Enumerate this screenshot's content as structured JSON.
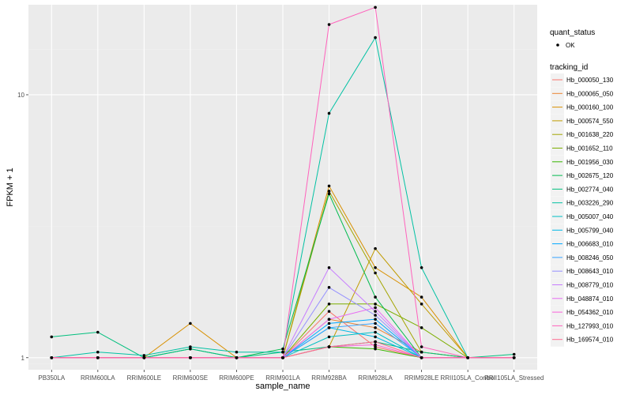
{
  "chart_data": {
    "type": "line",
    "xlabel": "sample_name",
    "ylabel": "FPKM + 1",
    "y_scale": "log10",
    "ylim": [
      0.9,
      22
    ],
    "y_ticks": [
      1,
      10
    ],
    "categories": [
      "PB350LA",
      "RRIM600LA",
      "RRIM600LE",
      "RRIM600SE",
      "RRIM600PE",
      "RRIM901LA",
      "RRIM928BA",
      "RRIM928LA",
      "RRIM928LE",
      "RRII105LA_Control",
      "RRII105LA_Stressed"
    ],
    "legend_point": {
      "title": "quant_status",
      "label": "OK"
    },
    "legend_title": "tracking_id",
    "series": [
      {
        "name": "Hb_000050_130",
        "color": "#F8766D",
        "values": [
          1.0,
          1.0,
          1.0,
          1.0,
          1.0,
          1.0,
          1.5,
          1.1,
          1.0,
          1.0,
          1.0
        ]
      },
      {
        "name": "Hb_000065_050",
        "color": "#EA8331",
        "values": [
          1.0,
          1.0,
          1.0,
          1.0,
          1.0,
          1.0,
          1.4,
          1.3,
          1.05,
          1.0,
          1.0
        ]
      },
      {
        "name": "Hb_000160_100",
        "color": "#D89000",
        "values": [
          1.0,
          1.0,
          1.0,
          1.35,
          1.0,
          1.0,
          4.5,
          2.2,
          1.7,
          1.0,
          1.0
        ]
      },
      {
        "name": "Hb_000574_550",
        "color": "#C09B00",
        "values": [
          1.0,
          1.0,
          1.0,
          1.0,
          1.0,
          1.0,
          1.1,
          2.6,
          1.6,
          1.0,
          1.0
        ]
      },
      {
        "name": "Hb_001638_220",
        "color": "#A3A500",
        "values": [
          1.0,
          1.0,
          1.0,
          1.0,
          1.0,
          1.0,
          4.3,
          2.1,
          1.05,
          1.0,
          1.0
        ]
      },
      {
        "name": "Hb_001652_110",
        "color": "#7CAE00",
        "values": [
          1.0,
          1.0,
          1.0,
          1.0,
          1.0,
          1.0,
          1.6,
          1.6,
          1.3,
          1.0,
          1.0
        ]
      },
      {
        "name": "Hb_001956_030",
        "color": "#39B600",
        "values": [
          1.0,
          1.0,
          1.0,
          1.0,
          1.0,
          1.0,
          1.1,
          1.08,
          1.0,
          1.0,
          1.0
        ]
      },
      {
        "name": "Hb_002675_120",
        "color": "#00BB4E",
        "values": [
          1.0,
          1.0,
          1.0,
          1.08,
          1.0,
          1.08,
          4.2,
          1.7,
          1.0,
          1.0,
          1.0
        ]
      },
      {
        "name": "Hb_002774_040",
        "color": "#00BF7D",
        "values": [
          1.2,
          1.25,
          1.0,
          1.08,
          1.0,
          1.05,
          1.1,
          1.15,
          1.05,
          1.0,
          1.03
        ]
      },
      {
        "name": "Hb_003226_290",
        "color": "#00C1A3",
        "values": [
          1.0,
          1.05,
          1.02,
          1.1,
          1.05,
          1.05,
          8.5,
          16.5,
          2.2,
          1.0,
          1.0
        ]
      },
      {
        "name": "Hb_005007_040",
        "color": "#00BFC4",
        "values": [
          1.0,
          1.0,
          1.0,
          1.0,
          1.0,
          1.0,
          1.2,
          1.25,
          1.0,
          1.0,
          1.0
        ]
      },
      {
        "name": "Hb_005799_040",
        "color": "#00B8E5",
        "values": [
          1.0,
          1.0,
          1.0,
          1.0,
          1.0,
          1.0,
          1.3,
          1.2,
          1.0,
          1.0,
          1.0
        ]
      },
      {
        "name": "Hb_006683_010",
        "color": "#00A9FF",
        "values": [
          1.0,
          1.0,
          1.0,
          1.0,
          1.0,
          1.0,
          1.35,
          1.4,
          1.0,
          1.0,
          1.0
        ]
      },
      {
        "name": "Hb_008246_050",
        "color": "#35A2FF",
        "values": [
          1.0,
          1.0,
          1.0,
          1.0,
          1.0,
          1.0,
          1.3,
          1.35,
          1.0,
          1.0,
          1.0
        ]
      },
      {
        "name": "Hb_008643_010",
        "color": "#9590FF",
        "values": [
          1.0,
          1.0,
          1.0,
          1.0,
          1.0,
          1.0,
          1.85,
          1.45,
          1.0,
          1.0,
          1.0
        ]
      },
      {
        "name": "Hb_008779_010",
        "color": "#C77CFF",
        "values": [
          1.0,
          1.0,
          1.0,
          1.0,
          1.0,
          1.0,
          2.2,
          1.5,
          1.0,
          1.0,
          1.0
        ]
      },
      {
        "name": "Hb_048874_010",
        "color": "#E76BF3",
        "values": [
          1.0,
          1.0,
          1.0,
          1.0,
          1.0,
          1.0,
          1.4,
          1.55,
          1.0,
          1.0,
          1.0
        ]
      },
      {
        "name": "Hb_054362_010",
        "color": "#FA62DB",
        "values": [
          1.0,
          1.0,
          1.0,
          1.0,
          1.0,
          1.0,
          1.1,
          1.12,
          1.0,
          1.0,
          1.0
        ]
      },
      {
        "name": "Hb_127993_010",
        "color": "#FF62BC",
        "values": [
          1.0,
          1.0,
          1.0,
          1.0,
          1.0,
          1.0,
          18.5,
          21.5,
          1.1,
          1.0,
          1.0
        ]
      },
      {
        "name": "Hb_169574_010",
        "color": "#FF6C91",
        "values": [
          1.0,
          1.0,
          1.0,
          1.0,
          1.0,
          1.0,
          1.1,
          1.15,
          1.0,
          1.0,
          1.0
        ]
      }
    ]
  }
}
